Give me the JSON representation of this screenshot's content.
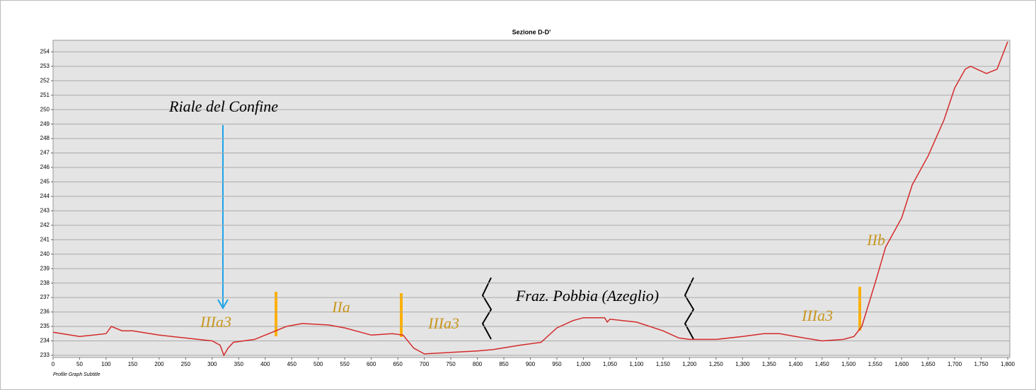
{
  "chart_data": {
    "type": "line",
    "title": "Sezione D-D'",
    "subtitle": "Profile Graph Subtitle",
    "annotations": [
      "Riale del Confine",
      "IIIa3",
      "IIa",
      "IIIa3",
      "Fraz. Pobbia (Azeglio)",
      "IIIa3",
      "IIb"
    ],
    "x": [
      0,
      50,
      100,
      110,
      130,
      150,
      200,
      250,
      300,
      315,
      322,
      330,
      340,
      380,
      420,
      440,
      470,
      520,
      550,
      600,
      640,
      660,
      680,
      700,
      750,
      800,
      830,
      880,
      920,
      950,
      980,
      1000,
      1040,
      1045,
      1050,
      1100,
      1150,
      1180,
      1200,
      1250,
      1300,
      1340,
      1370,
      1400,
      1450,
      1490,
      1510,
      1525,
      1550,
      1570,
      1600,
      1620,
      1650,
      1680,
      1700,
      1720,
      1730,
      1760,
      1780,
      1800
    ],
    "values": [
      234.6,
      234.3,
      234.5,
      235.0,
      234.7,
      234.7,
      234.4,
      234.2,
      234.0,
      233.7,
      233.0,
      233.5,
      233.9,
      234.1,
      234.7,
      235.0,
      235.2,
      235.1,
      234.9,
      234.4,
      234.5,
      234.4,
      233.5,
      233.1,
      233.2,
      233.3,
      233.4,
      233.7,
      233.9,
      234.9,
      235.4,
      235.6,
      235.6,
      235.3,
      235.5,
      235.3,
      234.7,
      234.2,
      234.1,
      234.1,
      234.3,
      234.5,
      234.5,
      234.3,
      234.0,
      234.1,
      234.3,
      235.0,
      238.0,
      240.5,
      242.5,
      244.8,
      246.8,
      249.3,
      251.5,
      252.8,
      253.0,
      252.5,
      252.8,
      254.7
    ],
    "color": "#d42a2a",
    "xlim": [
      0,
      1804
    ],
    "ylim": [
      232.85,
      254.8
    ],
    "xticks": [
      0,
      50,
      100,
      150,
      200,
      250,
      300,
      350,
      400,
      450,
      500,
      550,
      600,
      650,
      700,
      750,
      800,
      850,
      900,
      950,
      {
        "value": 1000,
        "label": "1,000"
      },
      {
        "value": 1050,
        "label": "1,050"
      },
      {
        "value": 1100,
        "label": "1,100"
      },
      {
        "value": 1150,
        "label": "1,150"
      },
      {
        "value": 1200,
        "label": "1,200"
      },
      {
        "value": 1250,
        "label": "1,250"
      },
      {
        "value": 1300,
        "label": "1,300"
      },
      {
        "value": 1350,
        "label": "1,350"
      },
      {
        "value": 1400,
        "label": "1,400"
      },
      {
        "value": 1450,
        "label": "1,450"
      },
      {
        "value": 1500,
        "label": "1,500"
      },
      {
        "value": 1550,
        "label": "1,550"
      },
      {
        "value": 1600,
        "label": "1,600"
      },
      {
        "value": 1650,
        "label": "1,650"
      },
      {
        "value": 1700,
        "label": "1,700"
      },
      {
        "value": 1750,
        "label": "1,750"
      },
      {
        "value": 1800,
        "label": "1,800"
      }
    ],
    "yticks": [
      233,
      234,
      235,
      236,
      237,
      238,
      239,
      240,
      241,
      242,
      243,
      244,
      245,
      246,
      247,
      248,
      249,
      250,
      251,
      252,
      253,
      254
    ],
    "grid": true
  }
}
